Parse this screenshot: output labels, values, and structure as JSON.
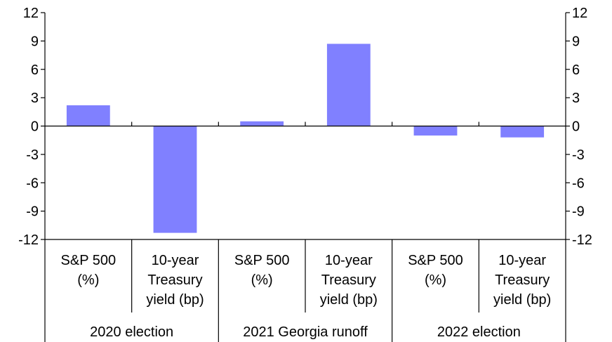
{
  "chart_data": {
    "type": "bar",
    "title": "",
    "xlabel": "",
    "ylabel": "",
    "ylim": [
      -12,
      12
    ],
    "yticks": [
      12,
      9,
      6,
      3,
      0,
      -3,
      -6,
      -9,
      -12
    ],
    "yaxis_right": true,
    "grid": false,
    "bar_color": "#8080ff",
    "groups": [
      {
        "label": "2020 election",
        "categories": [
          [
            "S&P 500",
            "(%)"
          ],
          [
            "10-year",
            "Treasury",
            "yield (bp)"
          ]
        ],
        "values": [
          2.2,
          -11.3
        ]
      },
      {
        "label": "2021 Georgia runoff",
        "categories": [
          [
            "S&P 500",
            "(%)"
          ],
          [
            "10-year",
            "Treasury",
            "yield (bp)"
          ]
        ],
        "values": [
          0.5,
          8.7
        ]
      },
      {
        "label": "2022 election",
        "categories": [
          [
            "S&P 500",
            "(%)"
          ],
          [
            "10-year",
            "Treasury",
            "yield (bp)"
          ]
        ],
        "values": [
          -1.0,
          -1.2
        ]
      }
    ]
  }
}
